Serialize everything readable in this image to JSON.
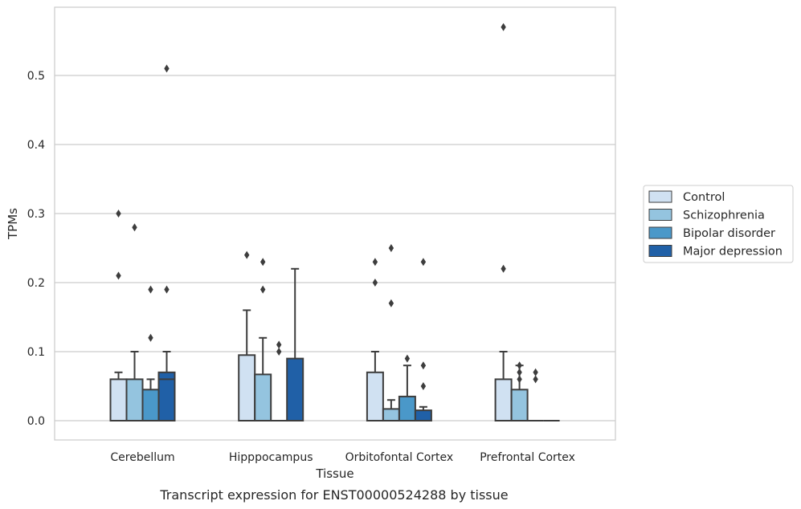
{
  "caption": "Transcript expression for ENST00000524288 by tissue",
  "chart_data": {
    "type": "box",
    "xlabel": "Tissue",
    "ylabel": "TPMs",
    "ylim": [
      -0.028,
      0.598
    ],
    "yticks": [
      0.0,
      0.1,
      0.2,
      0.3,
      0.4,
      0.5
    ],
    "ytick_labels": [
      "0.0",
      "0.1",
      "0.2",
      "0.3",
      "0.4",
      "0.5"
    ],
    "grid": "horizontal",
    "legend_position": "right",
    "categories": [
      "Cerebellum",
      "Hipppocampus",
      "Orbitofontal Cortex",
      "Prefrontal Cortex"
    ],
    "series": [
      {
        "name": "Control",
        "color": "#d0e1f2",
        "boxes": [
          {
            "q1": 0.0,
            "median": 0.0,
            "q3": 0.06,
            "whisker_low": 0.0,
            "whisker_high": 0.07,
            "outliers": [
              0.21,
              0.3
            ]
          },
          {
            "q1": 0.0,
            "median": 0.0,
            "q3": 0.095,
            "whisker_low": 0.0,
            "whisker_high": 0.16,
            "outliers": [
              0.24
            ]
          },
          {
            "q1": 0.0,
            "median": 0.0,
            "q3": 0.07,
            "whisker_low": 0.0,
            "whisker_high": 0.1,
            "outliers": [
              0.2,
              0.23
            ]
          },
          {
            "q1": 0.0,
            "median": 0.0,
            "q3": 0.06,
            "whisker_low": 0.0,
            "whisker_high": 0.1,
            "outliers": [
              0.22,
              0.57
            ]
          }
        ]
      },
      {
        "name": "Schizophrenia",
        "color": "#94c4df",
        "boxes": [
          {
            "q1": 0.0,
            "median": 0.0,
            "q3": 0.06,
            "whisker_low": 0.0,
            "whisker_high": 0.1,
            "outliers": [
              0.28
            ]
          },
          {
            "q1": 0.0,
            "median": 0.0,
            "q3": 0.067,
            "whisker_low": 0.0,
            "whisker_high": 0.12,
            "outliers": [
              0.19,
              0.23
            ]
          },
          {
            "q1": 0.0,
            "median": 0.0,
            "q3": 0.017,
            "whisker_low": 0.0,
            "whisker_high": 0.03,
            "outliers": [
              0.17,
              0.25
            ]
          },
          {
            "q1": 0.0,
            "median": 0.0,
            "q3": 0.045,
            "whisker_low": 0.0,
            "whisker_high": 0.08,
            "outliers": [
              0.06,
              0.07,
              0.08
            ]
          }
        ]
      },
      {
        "name": "Bipolar disorder",
        "color": "#4a98c9",
        "boxes": [
          {
            "q1": 0.0,
            "median": 0.0,
            "q3": 0.045,
            "whisker_low": 0.0,
            "whisker_high": 0.06,
            "outliers": [
              0.12,
              0.19
            ]
          },
          {
            "q1": 0.0,
            "median": 0.0,
            "q3": 0.0,
            "whisker_low": 0.0,
            "whisker_high": 0.0,
            "outliers": [
              0.1,
              0.11
            ]
          },
          {
            "q1": 0.0,
            "median": 0.0,
            "q3": 0.035,
            "whisker_low": 0.0,
            "whisker_high": 0.08,
            "outliers": [
              0.09
            ]
          },
          {
            "q1": 0.0,
            "median": 0.0,
            "q3": 0.0,
            "whisker_low": 0.0,
            "whisker_high": 0.0,
            "outliers": [
              0.06,
              0.07
            ]
          }
        ]
      },
      {
        "name": "Major depression",
        "color": "#2060a7",
        "boxes": [
          {
            "q1": 0.0,
            "median": 0.06,
            "q3": 0.07,
            "whisker_low": 0.0,
            "whisker_high": 0.1,
            "outliers": [
              0.19,
              0.51
            ]
          },
          {
            "q1": 0.0,
            "median": 0.0,
            "q3": 0.09,
            "whisker_low": 0.0,
            "whisker_high": 0.22,
            "outliers": []
          },
          {
            "q1": 0.0,
            "median": 0.0,
            "q3": 0.015,
            "whisker_low": 0.0,
            "whisker_high": 0.02,
            "outliers": [
              0.05,
              0.08,
              0.23
            ]
          },
          {
            "q1": 0.0,
            "median": 0.0,
            "q3": 0.0,
            "whisker_low": 0.0,
            "whisker_high": 0.0,
            "outliers": []
          }
        ]
      }
    ]
  }
}
